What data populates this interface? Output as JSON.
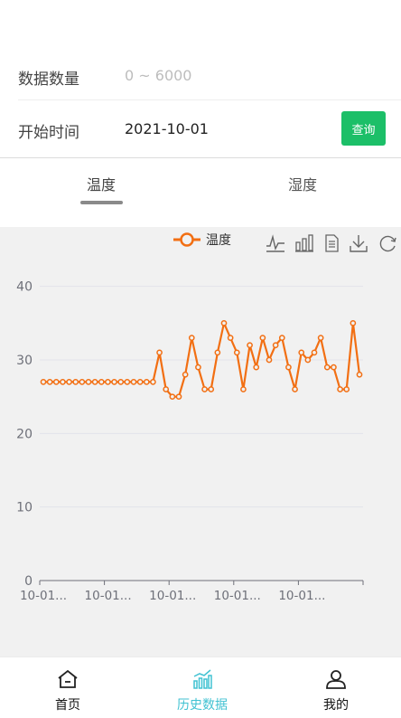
{
  "form": {
    "count_label": "数据数量",
    "count_placeholder": "0 ~ 6000",
    "start_label": "开始时间",
    "start_value": "2021-10-01",
    "query_label": "查询"
  },
  "tabs": [
    {
      "label": "温度",
      "active": true
    },
    {
      "label": "湿度",
      "active": false
    }
  ],
  "chart_legend": "温度",
  "toolbox_icons": [
    "line-chart-icon",
    "bar-chart-icon",
    "data-view-icon",
    "download-icon",
    "refresh-icon"
  ],
  "colors": {
    "series": "#f26f13",
    "accent_green": "#1cbf68",
    "nav_active": "#41c2d2"
  },
  "chart_data": {
    "type": "line",
    "legend": [
      "温度"
    ],
    "legend_position": "top-center",
    "grid": true,
    "ylim": [
      0,
      45
    ],
    "y_ticks": [
      0,
      10,
      20,
      30,
      40
    ],
    "x_tick_labels": [
      "10-01...",
      "10-01...",
      "10-01...",
      "10-01...",
      "10-01..."
    ],
    "x_tick_label_every": 10,
    "series": [
      {
        "name": "温度",
        "values": [
          27,
          27,
          27,
          27,
          27,
          27,
          27,
          27,
          27,
          27,
          27,
          27,
          27,
          27,
          27,
          27,
          27,
          27,
          31,
          26,
          25,
          25,
          28,
          33,
          29,
          26,
          26,
          31,
          35,
          33,
          31,
          26,
          32,
          29,
          33,
          30,
          32,
          33,
          29,
          26,
          31,
          30,
          31,
          33,
          29,
          29,
          26,
          26,
          35,
          28
        ]
      }
    ]
  },
  "nav": {
    "home": "首页",
    "history": "历史数据",
    "me": "我的"
  }
}
